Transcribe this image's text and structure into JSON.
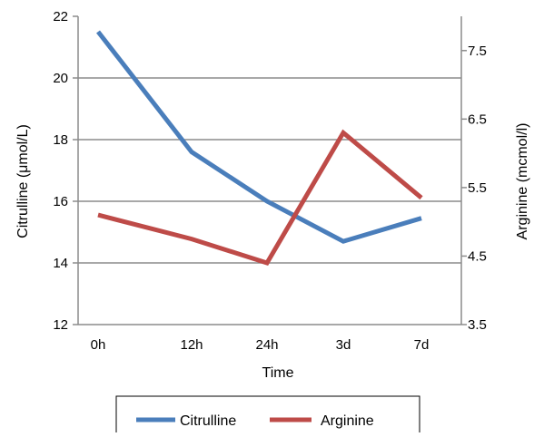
{
  "chart_data": {
    "type": "line",
    "categories": [
      "0h",
      "12h",
      "24h",
      "3d",
      "7d"
    ],
    "xlabel": "Time",
    "ylabel_left": "Citrulline (μmol/L)",
    "ylabel_right": "Arginine (mcmol/l)",
    "ylim_left": [
      12,
      22
    ],
    "ylim_right": [
      3.5,
      8
    ],
    "yticks_left": [
      "12",
      "14",
      "16",
      "18",
      "20",
      "22"
    ],
    "yticks_right": [
      "3.5",
      "4.5",
      "5.5",
      "6.5",
      "7.5"
    ],
    "grid": true,
    "legend_position": "bottom",
    "series": [
      {
        "name": "Citrulline",
        "axis": "left",
        "color": "#4a7ebb",
        "values": [
          21.5,
          17.6,
          16.0,
          14.7,
          15.45
        ]
      },
      {
        "name": "Arginine",
        "axis": "right",
        "color": "#be4b48",
        "values": [
          5.1,
          4.75,
          4.4,
          6.3,
          5.35
        ]
      }
    ]
  }
}
